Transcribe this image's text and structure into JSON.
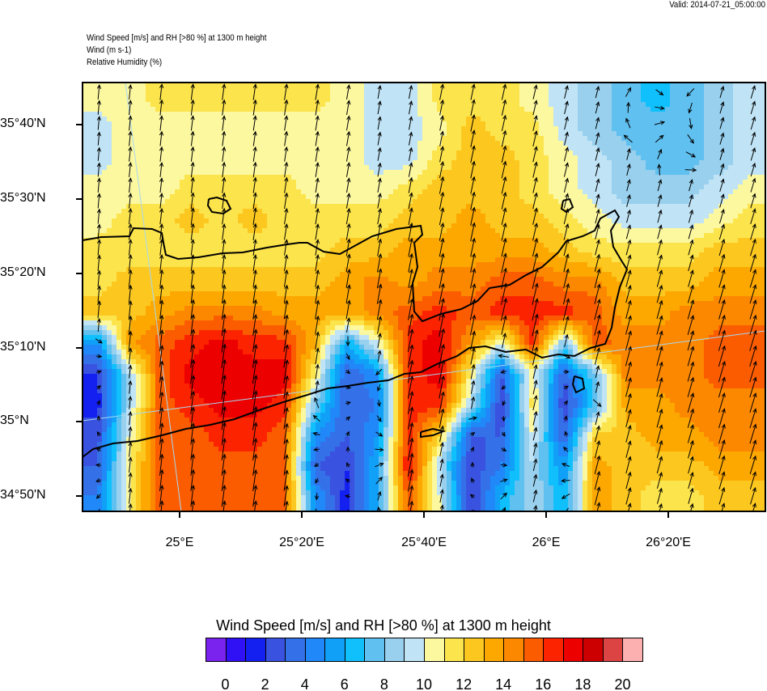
{
  "header": {
    "valid": "Valid: 2014-07-21_05:00:00",
    "line1": "Wind Speed [m/s] and RH [>80 %] at 1300 m height",
    "line2": "Wind   (m s-1)",
    "line3": "Relative Humidity   (%)"
  },
  "axes": {
    "y_ticks": [
      "35°40'N",
      "35°30'N",
      "35°20'N",
      "35°10'N",
      "35°N",
      "34°50'N"
    ],
    "x_ticks": [
      "25°E",
      "25°20'E",
      "25°40'E",
      "26°E",
      "26°20'E"
    ]
  },
  "colorbar": {
    "title": "Wind Speed [m/s] and RH [>80 %] at 1300 m height",
    "labels": [
      "0",
      "2",
      "4",
      "6",
      "8",
      "10",
      "12",
      "14",
      "16",
      "18",
      "20"
    ],
    "colors": [
      "#7a22ee",
      "#3010f4",
      "#1420f0",
      "#3a52e0",
      "#3470e8",
      "#2088f8",
      "#10a0f8",
      "#10c0fc",
      "#60c0f0",
      "#98d0ee",
      "#c0e4f6",
      "#fcf8a0",
      "#fce44c",
      "#fcc820",
      "#fca800",
      "#fc8800",
      "#fc5c00",
      "#fc2400",
      "#ec0000",
      "#cc0000",
      "#dc4444",
      "#fcb0b0"
    ]
  },
  "chart_data": {
    "type": "heatmap",
    "title": "Wind Speed [m/s] and RH [>80 %] at 1300 m height",
    "units": "m/s",
    "lon_range": [
      "24°47'E",
      "26°35'E"
    ],
    "lat_range": [
      "34°46'N",
      "35°46'N"
    ],
    "wind_direction_deg_prevailing": 185,
    "speed_grid_rows_north_to_south": [
      [
        10.5,
        10.5,
        11.5,
        11.5,
        11.5,
        11.5,
        11.5,
        11.5,
        10.5,
        9.5,
        9.5,
        11.5,
        11.5,
        11.5,
        10.5,
        9.5,
        8.5,
        7.5,
        6.5,
        7.5,
        8.5,
        9.5
      ],
      [
        9.5,
        10.5,
        10.5,
        10.5,
        10.5,
        10.5,
        10.5,
        10.5,
        10.5,
        9.5,
        9.5,
        10.5,
        12.5,
        11.5,
        11.5,
        9.5,
        8.5,
        7.5,
        7.5,
        7.5,
        8.5,
        9.5
      ],
      [
        9.5,
        10.5,
        10.5,
        10.5,
        10.5,
        10.5,
        10.5,
        10.5,
        10.5,
        9.5,
        9.5,
        11.5,
        12.5,
        12.5,
        11.5,
        10.5,
        9.5,
        8.5,
        7.5,
        7.5,
        8.5,
        9.5
      ],
      [
        10.5,
        10.5,
        10.5,
        11.5,
        11.5,
        11.5,
        11.5,
        10.5,
        10.5,
        10.5,
        11.5,
        12.5,
        12.5,
        12.5,
        11.5,
        10.5,
        9.5,
        8.5,
        8.5,
        8.5,
        9.5,
        10.5
      ],
      [
        10.5,
        11.5,
        11.5,
        12.5,
        11.5,
        12.5,
        11.5,
        11.5,
        11.5,
        11.5,
        12.5,
        12.5,
        13.5,
        12.5,
        12.5,
        11.5,
        10.5,
        9.5,
        9.5,
        9.5,
        10.5,
        11.5
      ],
      [
        11.5,
        11.5,
        11.5,
        11.5,
        11.5,
        11.5,
        11.5,
        11.5,
        12.5,
        12.5,
        13.5,
        13.5,
        13.5,
        13.5,
        13.5,
        12.5,
        11.5,
        11.5,
        11.5,
        11.5,
        12.5,
        12.5
      ],
      [
        11.5,
        12.5,
        12.5,
        12.5,
        12.5,
        12.5,
        12.5,
        12.5,
        13.5,
        14.5,
        13.5,
        14.5,
        14.5,
        15.5,
        15.5,
        14.5,
        14.5,
        12.5,
        12.5,
        12.5,
        13.5,
        13.5
      ],
      [
        12.5,
        12.5,
        13.5,
        14.5,
        14.5,
        14.5,
        13.5,
        13.5,
        13.5,
        14.5,
        15.5,
        16.5,
        15.5,
        16.5,
        16.5,
        16.5,
        15.5,
        13.5,
        13.5,
        14.5,
        14.5,
        14.5
      ],
      [
        5,
        13.5,
        15.5,
        16.5,
        17.5,
        16.5,
        16.5,
        13,
        6,
        10,
        16.5,
        17.5,
        14,
        10,
        16.5,
        8,
        15.5,
        14.5,
        14.5,
        14.5,
        15.5,
        15.5
      ],
      [
        2,
        9,
        15.5,
        17.5,
        17.5,
        17.5,
        17.5,
        11,
        3,
        5,
        16.5,
        17.5,
        11,
        3,
        10.5,
        3,
        8,
        14.5,
        14.5,
        14.5,
        15.5,
        15.5
      ],
      [
        1.5,
        9,
        15.5,
        16.5,
        17.5,
        17.5,
        16.5,
        8,
        3,
        4,
        16.5,
        16.5,
        9,
        2,
        11.5,
        2,
        7,
        13.5,
        13.5,
        14.5,
        14.5,
        14.5
      ],
      [
        2.5,
        10,
        15.5,
        15.5,
        16.5,
        16.5,
        15.5,
        5,
        3,
        5,
        16.5,
        12,
        3,
        3,
        10,
        3,
        12,
        12.5,
        13.5,
        13.5,
        14.5,
        14.5
      ],
      [
        3,
        11,
        15.5,
        15.5,
        15.5,
        15.5,
        15.5,
        3,
        2,
        6,
        17.5,
        9,
        2,
        4,
        9,
        5,
        13.5,
        12.5,
        12.5,
        12.5,
        13.5,
        13.5
      ],
      [
        4,
        11,
        15.5,
        15.5,
        15.5,
        15.5,
        15.5,
        5,
        1.5,
        6,
        15.5,
        10,
        2,
        6,
        9,
        6,
        13.5,
        12.5,
        11.5,
        11.5,
        12.5,
        12.5
      ]
    ]
  }
}
